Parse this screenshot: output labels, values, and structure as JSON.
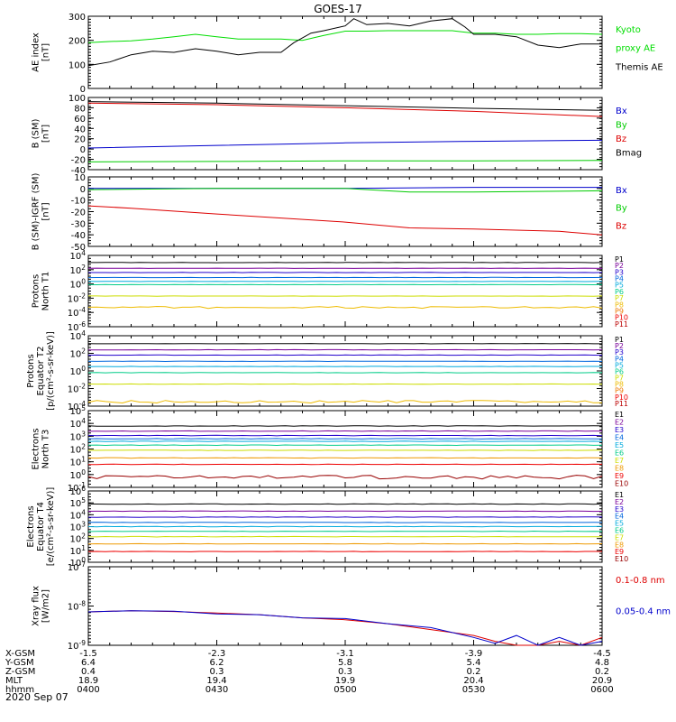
{
  "title": "GOES-17",
  "date": "2020 Sep 07",
  "x_axis": {
    "rows": [
      {
        "label": "X-GSM",
        "values": [
          "-1.5",
          "-2.3",
          "-3.1",
          "-3.9",
          "-4.5"
        ]
      },
      {
        "label": "Y-GSM",
        "values": [
          "6.4",
          "6.2",
          "5.8",
          "5.4",
          "4.8"
        ]
      },
      {
        "label": "Z-GSM",
        "values": [
          "0.4",
          "0.3",
          "0.3",
          "0.2",
          "0.2"
        ]
      },
      {
        "label": "MLT",
        "values": [
          "18.9",
          "19.4",
          "19.9",
          "20.4",
          "20.9"
        ]
      },
      {
        "label": "hhmm",
        "values": [
          "0400",
          "0430",
          "0500",
          "0530",
          "0600"
        ]
      }
    ],
    "tick_minutes": [
      0,
      30,
      60,
      90,
      120
    ]
  },
  "chart_data": [
    {
      "type": "line",
      "id": "ae",
      "ylabel": [
        "AE index",
        "[nT]"
      ],
      "ylim": [
        0,
        300
      ],
      "yticks": [
        {
          "v": 0,
          "t": "0"
        },
        {
          "v": 100,
          "t": "100"
        },
        {
          "v": 200,
          "t": "200"
        },
        {
          "v": 300,
          "t": "300"
        }
      ],
      "legend": [
        {
          "text": "Kyoto",
          "color": "#00dd00"
        },
        {
          "text": "proxy AE",
          "color": "#00dd00"
        },
        {
          "text": "Themis AE",
          "color": "#000000"
        }
      ],
      "series": [
        {
          "name": "Kyoto proxy AE",
          "color": "#00dd00",
          "x": [
            0,
            5,
            10,
            15,
            20,
            25,
            30,
            35,
            40,
            45,
            50,
            55,
            60,
            65,
            70,
            75,
            80,
            85,
            90,
            95,
            100,
            105,
            110,
            115,
            120
          ],
          "y": [
            190,
            195,
            198,
            205,
            215,
            225,
            215,
            205,
            205,
            205,
            200,
            220,
            238,
            238,
            240,
            240,
            240,
            240,
            230,
            230,
            225,
            225,
            228,
            228,
            225
          ]
        },
        {
          "name": "Themis AE",
          "color": "#000000",
          "x": [
            0,
            5,
            10,
            15,
            20,
            25,
            30,
            35,
            40,
            45,
            48,
            52,
            55,
            60,
            62,
            65,
            70,
            75,
            80,
            85,
            88,
            90,
            95,
            100,
            105,
            110,
            115,
            120
          ],
          "y": [
            95,
            110,
            140,
            155,
            150,
            165,
            155,
            140,
            150,
            150,
            190,
            230,
            240,
            260,
            290,
            265,
            270,
            260,
            280,
            290,
            255,
            225,
            225,
            215,
            180,
            170,
            185,
            185
          ]
        }
      ]
    },
    {
      "type": "line",
      "id": "bsm",
      "ylabel": [
        "B (SM)",
        "[nT]"
      ],
      "ylim": [
        -40,
        100
      ],
      "yticks": [
        {
          "v": -40,
          "t": "-40"
        },
        {
          "v": -20,
          "t": "-20"
        },
        {
          "v": 0,
          "t": "0"
        },
        {
          "v": 20,
          "t": "20"
        },
        {
          "v": 40,
          "t": "40"
        },
        {
          "v": 60,
          "t": "60"
        },
        {
          "v": 80,
          "t": "80"
        },
        {
          "v": 100,
          "t": "100"
        }
      ],
      "legend": [
        {
          "text": "Bx",
          "color": "#0000cc"
        },
        {
          "text": "By",
          "color": "#00cc00"
        },
        {
          "text": "Bz",
          "color": "#dd0000"
        },
        {
          "text": "Bmag",
          "color": "#000000"
        }
      ],
      "series": [
        {
          "name": "Bmag",
          "color": "#000000",
          "x": [
            0,
            30,
            60,
            90,
            120
          ],
          "y": [
            92,
            89,
            84,
            79,
            75
          ]
        },
        {
          "name": "Bz",
          "color": "#dd0000",
          "x": [
            0,
            30,
            60,
            90,
            120
          ],
          "y": [
            89,
            86,
            80,
            73,
            63
          ]
        },
        {
          "name": "Bx",
          "color": "#0000cc",
          "x": [
            0,
            30,
            60,
            90,
            120
          ],
          "y": [
            2,
            7,
            12,
            15,
            17
          ]
        },
        {
          "name": "By",
          "color": "#00cc00",
          "x": [
            0,
            30,
            60,
            90,
            120
          ],
          "y": [
            -25,
            -24,
            -23,
            -23,
            -22
          ]
        }
      ]
    },
    {
      "type": "line",
      "id": "bigrf",
      "ylabel": [
        "B (SM)-IGRF (SM)",
        "[nT]"
      ],
      "ylim": [
        -50,
        10
      ],
      "yticks": [
        {
          "v": -50,
          "t": "-50"
        },
        {
          "v": -40,
          "t": "-40"
        },
        {
          "v": -30,
          "t": "-30"
        },
        {
          "v": -20,
          "t": "-20"
        },
        {
          "v": -10,
          "t": "-10"
        },
        {
          "v": 0,
          "t": "0"
        },
        {
          "v": 10,
          "t": "10"
        }
      ],
      "legend": [
        {
          "text": "Bx",
          "color": "#0000cc"
        },
        {
          "text": "By",
          "color": "#00cc00"
        },
        {
          "text": "Bz",
          "color": "#dd0000"
        }
      ],
      "series": [
        {
          "name": "Bx",
          "color": "#0000cc",
          "x": [
            0,
            30,
            60,
            90,
            120
          ],
          "y": [
            0,
            0,
            0,
            1,
            1
          ]
        },
        {
          "name": "By",
          "color": "#00cc00",
          "x": [
            0,
            30,
            60,
            75,
            90,
            120
          ],
          "y": [
            -1,
            0,
            0,
            -3,
            -3,
            -2
          ]
        },
        {
          "name": "Bz",
          "color": "#dd0000",
          "x": [
            0,
            10,
            30,
            60,
            75,
            90,
            110,
            120
          ],
          "y": [
            -15,
            -17,
            -22,
            -29,
            -34,
            -35,
            -37,
            -40
          ]
        }
      ]
    },
    {
      "type": "line",
      "id": "p_t1",
      "log": true,
      "ylabel": [
        "Protons",
        "North T1"
      ],
      "ylim": [
        -6,
        4
      ],
      "yticks": [
        {
          "v": 4,
          "t": "10^4"
        },
        {
          "v": 2,
          "t": "10^2"
        },
        {
          "v": 0,
          "t": "10^0"
        },
        {
          "v": -2,
          "t": "10^-2"
        },
        {
          "v": -4,
          "t": "10^-4"
        },
        {
          "v": -6,
          "t": "10^-6"
        }
      ],
      "channels": [
        "P1",
        "P2",
        "P3",
        "P4",
        "P5",
        "P6",
        "P7",
        "P8",
        "P9",
        "P10",
        "P11"
      ],
      "channel_colors": [
        "#000000",
        "#7a0099",
        "#2200cc",
        "#0066dd",
        "#00aadd",
        "#00cc88",
        "#ccdd00",
        "#eebb00",
        "#ee7700",
        "#ee0000",
        "#bb0000"
      ],
      "series": [
        {
          "color": "#000000",
          "y": 3.0
        },
        {
          "color": "#7a0099",
          "y": 2.2
        },
        {
          "color": "#2200cc",
          "y": 1.6
        },
        {
          "color": "#0066dd",
          "y": 0.9
        },
        {
          "color": "#00aadd",
          "y": 0.35
        },
        {
          "color": "#00cc88",
          "y": -0.1
        },
        {
          "color": "#ccdd00",
          "y": -1.7
        },
        {
          "color": "#eebb00",
          "y": -3.3,
          "noisy": true
        }
      ]
    },
    {
      "type": "line",
      "id": "p_t2",
      "log": true,
      "ylabel": [
        "Protons",
        "Equator T2",
        "[p/(cm²-s-sr-keV)]"
      ],
      "ylim": [
        -4,
        4
      ],
      "yticks": [
        {
          "v": 4,
          "t": "10^4"
        },
        {
          "v": 2,
          "t": "10^2"
        },
        {
          "v": 0,
          "t": "10^0"
        },
        {
          "v": -2,
          "t": "10^-2"
        },
        {
          "v": -4,
          "t": "10^-4"
        }
      ],
      "channels": [
        "P1",
        "P2",
        "P3",
        "P4",
        "P5",
        "P6",
        "P7",
        "P8",
        "P9",
        "P10",
        "P11"
      ],
      "channel_colors": [
        "#000000",
        "#7a0099",
        "#2200cc",
        "#0066dd",
        "#00aadd",
        "#00cc88",
        "#ccdd00",
        "#eebb00",
        "#ee7700",
        "#ee0000",
        "#bb0000"
      ],
      "series": [
        {
          "color": "#000000",
          "y": 3.1
        },
        {
          "color": "#7a0099",
          "y": 2.4
        },
        {
          "color": "#2200cc",
          "y": 1.8
        },
        {
          "color": "#0066dd",
          "y": 1.1
        },
        {
          "color": "#00aadd",
          "y": 0.5
        },
        {
          "color": "#00cc88",
          "y": -0.2
        },
        {
          "color": "#ccdd00",
          "y": -1.5
        },
        {
          "color": "#eebb00",
          "y": -3.5,
          "noisy": true
        }
      ]
    },
    {
      "type": "line",
      "id": "e_t3",
      "log": true,
      "ylabel": [
        "Electrons",
        "North T3"
      ],
      "ylim": [
        -1,
        5
      ],
      "yticks": [
        {
          "v": 5,
          "t": "10^5"
        },
        {
          "v": 4,
          "t": "10^4"
        },
        {
          "v": 3,
          "t": "10^3"
        },
        {
          "v": 2,
          "t": "10^2"
        },
        {
          "v": 1,
          "t": "10^1"
        },
        {
          "v": 0,
          "t": "10^0"
        },
        {
          "v": -1,
          "t": "10^-1"
        }
      ],
      "channels": [
        "E1",
        "E2",
        "E3",
        "E4",
        "E5",
        "E6",
        "E7",
        "E8",
        "E9",
        "E10"
      ],
      "channel_colors": [
        "#000000",
        "#7a0099",
        "#2200cc",
        "#0066dd",
        "#00aadd",
        "#00cc88",
        "#ccdd00",
        "#ee9900",
        "#ee0000",
        "#990000"
      ],
      "series": [
        {
          "color": "#000000",
          "y": 3.8
        },
        {
          "color": "#7a0099",
          "y": 3.4
        },
        {
          "color": "#2200cc",
          "y": 3.05
        },
        {
          "color": "#0066dd",
          "y": 2.8
        },
        {
          "color": "#00aadd",
          "y": 2.6
        },
        {
          "color": "#00cc88",
          "y": 2.3
        },
        {
          "color": "#ccdd00",
          "y": 1.9
        },
        {
          "color": "#ee9900",
          "y": 1.3
        },
        {
          "color": "#ee0000",
          "y": 0.8
        },
        {
          "color": "#990000",
          "y": -0.2,
          "noisy": true
        }
      ]
    },
    {
      "type": "line",
      "id": "e_t4",
      "log": true,
      "ylabel": [
        "Electrons",
        "Equator T4",
        "[e/(cm²-s-sr-keV)]"
      ],
      "ylim": [
        0,
        6
      ],
      "yticks": [
        {
          "v": 6,
          "t": "10^6"
        },
        {
          "v": 5,
          "t": "10^5"
        },
        {
          "v": 4,
          "t": "10^4"
        },
        {
          "v": 3,
          "t": "10^3"
        },
        {
          "v": 2,
          "t": "10^2"
        },
        {
          "v": 1,
          "t": "10^1"
        },
        {
          "v": 0,
          "t": "10^0"
        }
      ],
      "channels": [
        "E1",
        "E2",
        "E3",
        "E4",
        "E5",
        "E6",
        "E7",
        "E8",
        "E9",
        "E10"
      ],
      "channel_colors": [
        "#000000",
        "#7a0099",
        "#2200cc",
        "#0066dd",
        "#00aadd",
        "#00cc88",
        "#ccdd00",
        "#ee9900",
        "#ee0000",
        "#990000"
      ],
      "series": [
        {
          "color": "#000000",
          "y": 4.9
        },
        {
          "color": "#7a0099",
          "y": 4.3
        },
        {
          "color": "#2200cc",
          "y": 3.8
        },
        {
          "color": "#0066dd",
          "y": 3.35
        },
        {
          "color": "#00aadd",
          "y": 3.0
        },
        {
          "color": "#00cc88",
          "y": 2.6
        },
        {
          "color": "#ccdd00",
          "y": 2.15
        },
        {
          "color": "#ee9900",
          "y": 1.55
        },
        {
          "color": "#ee0000",
          "y": 0.9
        }
      ]
    },
    {
      "type": "line",
      "id": "xray",
      "log": true,
      "ylabel": [
        "Xray flux",
        "[W/m2]"
      ],
      "ylim": [
        -9,
        -7
      ],
      "yticks": [
        {
          "v": -7,
          "t": "10^-7"
        },
        {
          "v": -8,
          "t": "10^-8"
        },
        {
          "v": -9,
          "t": "10^-9"
        }
      ],
      "legend": [
        {
          "text": "0.1-0.8 nm",
          "color": "#dd0000"
        },
        {
          "text": "0.05-0.4 nm",
          "color": "#0000cc"
        }
      ],
      "series": [
        {
          "name": "0.1-0.8 nm",
          "color": "#dd0000",
          "x": [
            0,
            10,
            20,
            30,
            40,
            50,
            60,
            70,
            80,
            90,
            95,
            100,
            105,
            110,
            115,
            120
          ],
          "y": [
            -8.15,
            -8.12,
            -8.14,
            -8.18,
            -8.22,
            -8.3,
            -8.35,
            -8.45,
            -8.6,
            -8.75,
            -8.9,
            -9.0,
            -9.0,
            -8.9,
            -9.0,
            -8.8
          ]
        },
        {
          "name": "0.05-0.4 nm",
          "color": "#0000cc",
          "x": [
            0,
            10,
            20,
            30,
            40,
            50,
            60,
            70,
            80,
            90,
            95,
            100,
            105,
            110,
            115,
            120
          ],
          "y": [
            -8.15,
            -8.12,
            -8.13,
            -8.2,
            -8.22,
            -8.3,
            -8.32,
            -8.45,
            -8.55,
            -8.8,
            -8.95,
            -8.75,
            -9.0,
            -8.8,
            -9.0,
            -8.9
          ]
        }
      ]
    }
  ]
}
